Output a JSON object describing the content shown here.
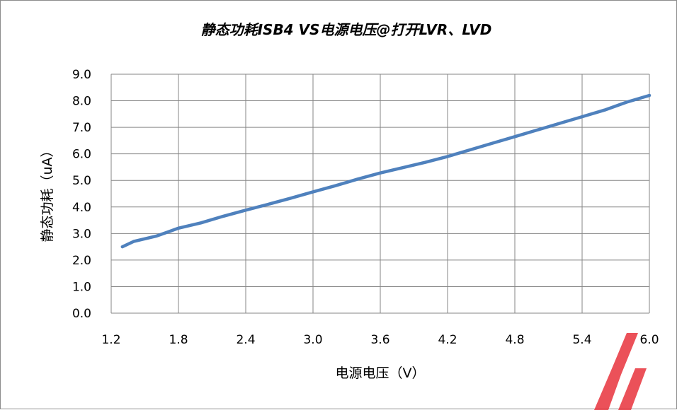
{
  "chart_data": {
    "type": "line",
    "title": "静态功耗ISB4 VS电源电压@打开LVR、LVD",
    "xlabel": "电源电压（V）",
    "ylabel": "静态功耗（uA）",
    "xlim": [
      1.2,
      6.0
    ],
    "ylim": [
      0.0,
      9.0
    ],
    "x_ticks": [
      "1.2",
      "1.8",
      "2.4",
      "3.0",
      "3.6",
      "4.2",
      "4.8",
      "5.4",
      "6.0"
    ],
    "y_ticks": [
      "0.0",
      "1.0",
      "2.0",
      "3.0",
      "4.0",
      "5.0",
      "6.0",
      "7.0",
      "8.0",
      "9.0"
    ],
    "grid": true,
    "legend": "none",
    "series": [
      {
        "color": "#4f81bd",
        "x": [
          1.3,
          1.4,
          1.5,
          1.6,
          1.7,
          1.8,
          2.0,
          2.2,
          2.4,
          2.6,
          2.8,
          3.0,
          3.2,
          3.4,
          3.6,
          3.8,
          4.0,
          4.2,
          4.4,
          4.6,
          4.8,
          5.0,
          5.2,
          5.4,
          5.6,
          5.8,
          6.0
        ],
        "y": [
          2.5,
          2.7,
          2.8,
          2.9,
          3.05,
          3.2,
          3.4,
          3.65,
          3.88,
          4.1,
          4.33,
          4.57,
          4.8,
          5.05,
          5.28,
          5.48,
          5.68,
          5.9,
          6.15,
          6.4,
          6.65,
          6.9,
          7.15,
          7.4,
          7.65,
          7.95,
          8.2
        ]
      }
    ]
  }
}
